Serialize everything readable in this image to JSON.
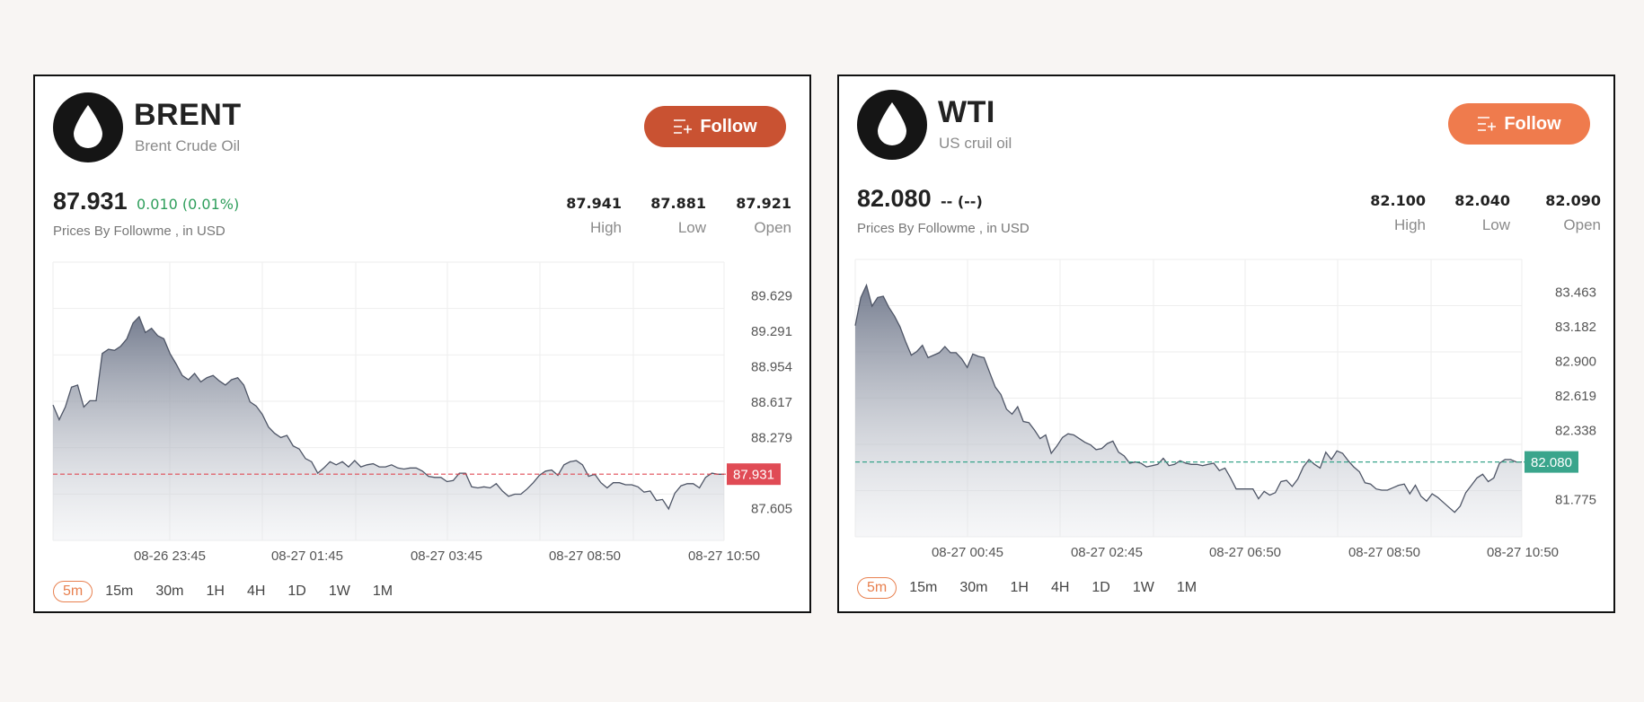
{
  "cards": [
    {
      "id": "brent",
      "title": "BRENT",
      "subtitle": "Brent Crude Oil",
      "follow_label": "Follow",
      "follow_color": "#c95232",
      "price": "87.931",
      "change": "0.010 (0.01%)",
      "change_color": "#2e9e5b",
      "price_note": "Prices By Followme , in USD",
      "stats": [
        {
          "value": "87.941",
          "label": "High"
        },
        {
          "value": "87.881",
          "label": "Low"
        },
        {
          "value": "87.921",
          "label": "Open"
        }
      ],
      "periods": [
        "5m",
        "15m",
        "30m",
        "1H",
        "4H",
        "1D",
        "1W",
        "1M"
      ],
      "active_period": "5m"
    },
    {
      "id": "wti",
      "title": "WTI",
      "subtitle": "US cruil oil",
      "follow_label": "Follow",
      "follow_color": "#ef7b4d",
      "price": "82.080",
      "change": "-- (--)",
      "change_color": "#222222",
      "price_note": "Prices By Followme , in USD",
      "stats": [
        {
          "value": "82.100",
          "label": "High"
        },
        {
          "value": "82.040",
          "label": "Low"
        },
        {
          "value": "82.090",
          "label": "Open"
        }
      ],
      "periods": [
        "5m",
        "15m",
        "30m",
        "1H",
        "4H",
        "1D",
        "1W",
        "1M"
      ],
      "active_period": "5m"
    }
  ],
  "chart_data": [
    {
      "type": "area",
      "title": "BRENT",
      "yticks": [
        "89.629",
        "89.291",
        "88.954",
        "88.617",
        "88.279",
        "87.605"
      ],
      "xticks": [
        "08-26 23:45",
        "08-27 01:45",
        "08-27 03:45",
        "08-27 08:50",
        "08-27 10:50"
      ],
      "ylim": [
        87.3,
        89.95
      ],
      "current_price": 87.931,
      "current_label": "87.931",
      "price_line_color": "#e04b55",
      "grid": true,
      "values": [
        88.59,
        88.45,
        88.57,
        88.76,
        88.78,
        88.57,
        88.63,
        88.63,
        89.08,
        89.12,
        89.11,
        89.15,
        89.22,
        89.37,
        89.43,
        89.28,
        89.32,
        89.25,
        89.22,
        89.08,
        88.98,
        88.87,
        88.83,
        88.89,
        88.81,
        88.85,
        88.87,
        88.82,
        88.78,
        88.83,
        88.85,
        88.78,
        88.62,
        88.58,
        88.5,
        88.38,
        88.32,
        88.28,
        88.3,
        88.2,
        88.17,
        88.08,
        88.05,
        87.94,
        87.99,
        88.05,
        88.02,
        88.05,
        88.0,
        88.06,
        88.0,
        88.02,
        88.03,
        88.0,
        88.0,
        88.02,
        87.99,
        87.98,
        87.99,
        87.99,
        87.96,
        87.91,
        87.9,
        87.9,
        87.86,
        87.87,
        87.94,
        87.94,
        87.81,
        87.8,
        87.81,
        87.8,
        87.84,
        87.77,
        87.72,
        87.74,
        87.74,
        87.79,
        87.85,
        87.92,
        87.96,
        87.97,
        87.92,
        88.02,
        88.05,
        88.06,
        88.02,
        87.91,
        87.93,
        87.85,
        87.8,
        87.85,
        87.85,
        87.83,
        87.83,
        87.81,
        87.76,
        87.77,
        87.68,
        87.69,
        87.6,
        87.75,
        87.82,
        87.84,
        87.84,
        87.8,
        87.9,
        87.94,
        87.93,
        87.93
      ]
    },
    {
      "type": "area",
      "title": "WTI",
      "yticks": [
        "83.463",
        "83.182",
        "82.900",
        "82.619",
        "82.338",
        "81.775"
      ],
      "xticks": [
        "08-27 00:45",
        "08-27 02:45",
        "08-27 06:50",
        "08-27 08:50",
        "08-27 10:50"
      ],
      "ylim": [
        81.47,
        83.73
      ],
      "current_price": 82.08,
      "current_label": "82.080",
      "price_line_color": "#3aa58c",
      "grid": true,
      "values": [
        83.19,
        83.42,
        83.52,
        83.35,
        83.42,
        83.43,
        83.34,
        83.27,
        83.18,
        83.06,
        82.95,
        82.98,
        83.03,
        82.93,
        82.95,
        82.97,
        83.02,
        82.97,
        82.97,
        82.92,
        82.85,
        82.96,
        82.94,
        82.93,
        82.81,
        82.69,
        82.63,
        82.51,
        82.47,
        82.53,
        82.41,
        82.4,
        82.34,
        82.27,
        82.3,
        82.15,
        82.21,
        82.28,
        82.31,
        82.3,
        82.27,
        82.24,
        82.22,
        82.18,
        82.19,
        82.23,
        82.25,
        82.16,
        82.13,
        82.07,
        82.08,
        82.07,
        82.04,
        82.05,
        82.06,
        82.11,
        82.05,
        82.06,
        82.09,
        82.07,
        82.06,
        82.06,
        82.05,
        82.06,
        82.07,
        82.01,
        82.03,
        81.95,
        81.86,
        81.86,
        81.86,
        81.86,
        81.78,
        81.84,
        81.81,
        81.83,
        81.92,
        81.93,
        81.88,
        81.94,
        82.04,
        82.1,
        82.06,
        82.03,
        82.16,
        82.1,
        82.17,
        82.15,
        82.09,
        82.04,
        82.0,
        81.91,
        81.9,
        81.86,
        81.85,
        81.85,
        81.87,
        81.89,
        81.9,
        81.82,
        81.89,
        81.8,
        81.76,
        81.82,
        81.79,
        81.75,
        81.71,
        81.67,
        81.72,
        81.83,
        81.89,
        81.95,
        81.98,
        81.92,
        81.95,
        82.07,
        82.1,
        82.1,
        82.08,
        82.08
      ]
    }
  ]
}
